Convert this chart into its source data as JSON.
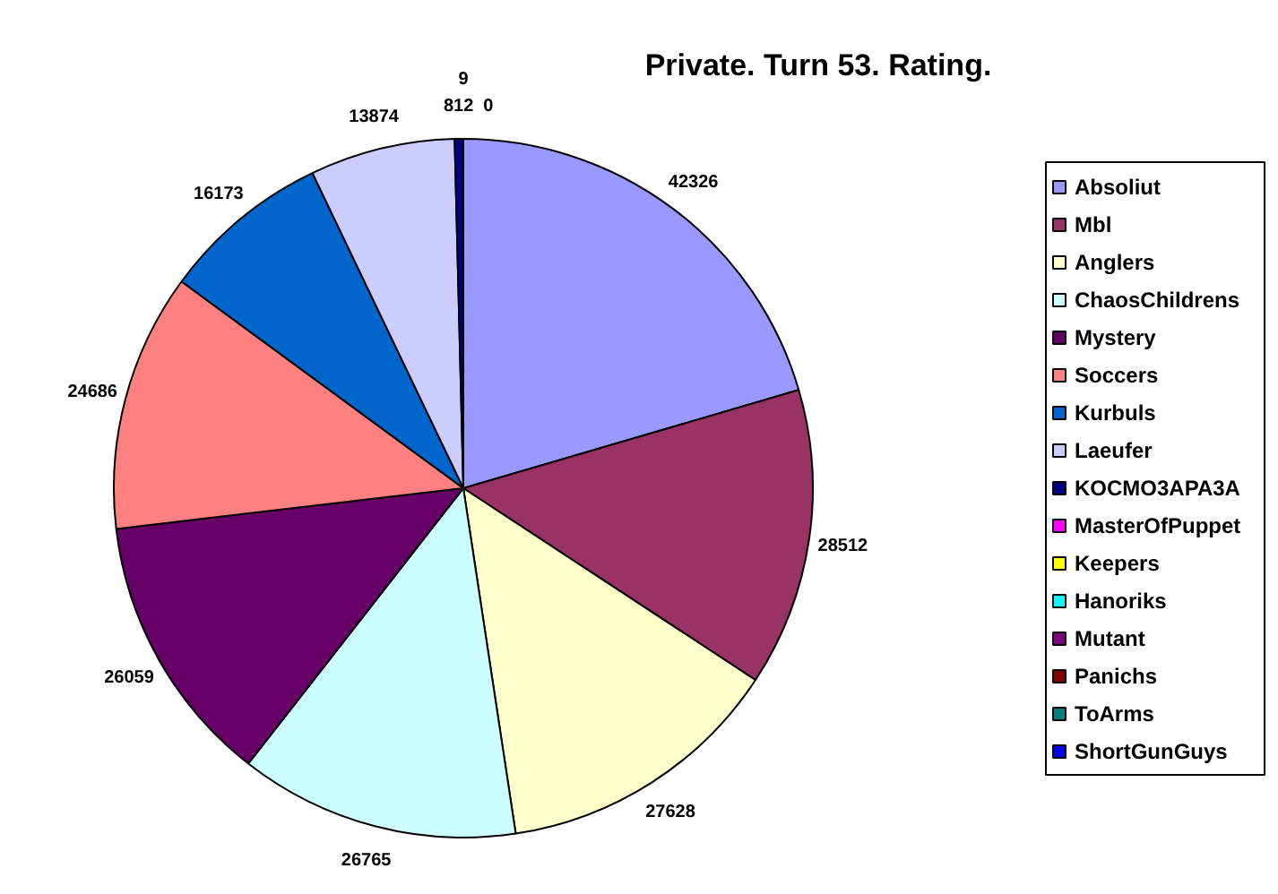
{
  "chart_data": {
    "type": "pie",
    "title": "Private. Turn 53. Rating.",
    "categories": [
      "Absoliut",
      "Mbl",
      "Anglers",
      "ChaosChildrens",
      "Mystery",
      "Soccers",
      "Kurbuls",
      "Laeufer",
      "KOCMO3APA3A",
      "MasterOfPuppet",
      "Keepers",
      "Hanoriks",
      "Mutant",
      "Panichs",
      "ToArms",
      "ShortGunGuys"
    ],
    "values": [
      42326,
      28512,
      27628,
      26765,
      26059,
      24686,
      16173,
      13874,
      812,
      0,
      null,
      null,
      null,
      null,
      null,
      9
    ],
    "colors": [
      "#9999ff",
      "#993366",
      "#ffffcc",
      "#ccffff",
      "#660066",
      "#ff8080",
      "#0066cc",
      "#ccccff",
      "#000080",
      "#ff00ff",
      "#ffff00",
      "#00ffff",
      "#800080",
      "#800000",
      "#008080",
      "#0000ff"
    ],
    "value_labels": [
      "42326",
      "28512",
      "27628",
      "26765",
      "26059",
      "24686",
      "16173",
      "13874",
      "812",
      "0",
      null,
      null,
      null,
      null,
      null,
      "9"
    ],
    "legend": "right"
  }
}
